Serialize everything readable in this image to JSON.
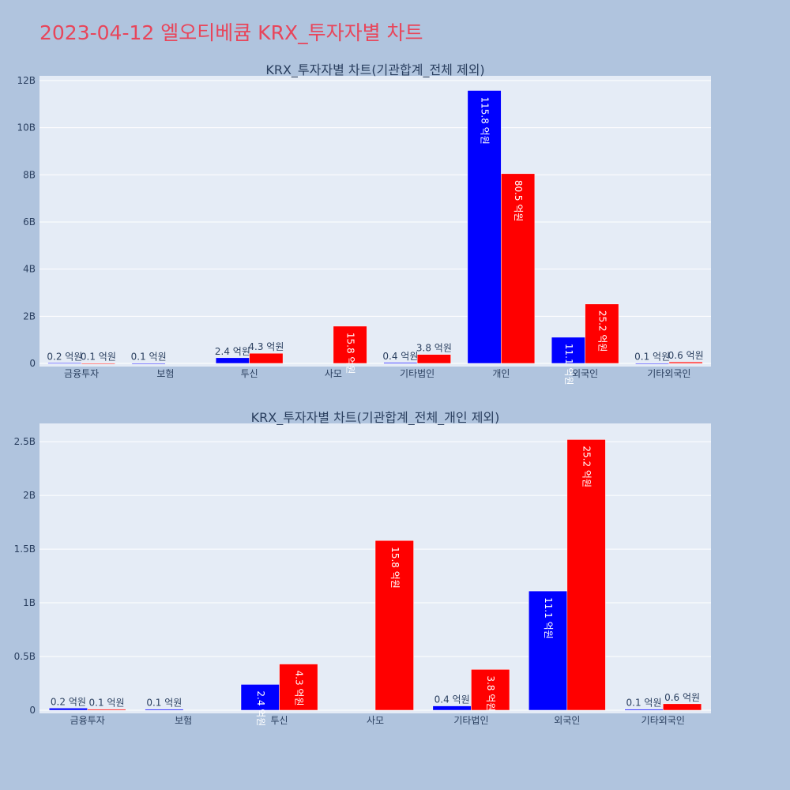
{
  "title": "2023-04-12 엘오티베큠 KRX_투자자별 차트",
  "colors": {
    "buy": "#0000ff",
    "sell": "#ff0000",
    "plot_bg": "#e5ecf6",
    "page_bg": "#b0c4de",
    "title": "#e8455a"
  },
  "chart_data": [
    {
      "type": "bar",
      "title": "KRX_투자자별 차트(기관합계_전체 제외)",
      "categories": [
        "금융투자",
        "보험",
        "투신",
        "사모",
        "기타법인",
        "개인",
        "외국인",
        "기타외국인"
      ],
      "ylim": [
        0,
        12200000000
      ],
      "yticks": [
        0,
        2000000000,
        4000000000,
        6000000000,
        8000000000,
        10000000000,
        12000000000
      ],
      "ytick_labels": [
        "0",
        "2B",
        "4B",
        "6B",
        "8B",
        "10B",
        "12B"
      ],
      "grid": true,
      "series": [
        {
          "color": "#0000ff",
          "values": [
            20000000,
            10000000,
            240000000,
            null,
            40000000,
            11580000000,
            1110000000,
            10000000
          ],
          "labels": [
            "0.2 억원",
            "0.1 억원",
            "2.4 억원",
            "",
            "0.4 억원",
            "115.8 억원",
            "11.1 억원",
            "0.1 억원"
          ]
        },
        {
          "color": "#ff0000",
          "values": [
            10000000,
            null,
            430000000,
            1580000000,
            380000000,
            8050000000,
            2520000000,
            60000000
          ],
          "labels": [
            "0.1 억원",
            "",
            "4.3 억원",
            "15.8 억원",
            "3.8 억원",
            "80.5 억원",
            "25.2 억원",
            "0.6 억원"
          ]
        }
      ]
    },
    {
      "type": "bar",
      "title": "KRX_투자자별 차트(기관합계_전체_개인 제외)",
      "categories": [
        "금융투자",
        "보험",
        "투신",
        "사모",
        "기타법인",
        "외국인",
        "기타외국인"
      ],
      "ylim": [
        0,
        2670000000
      ],
      "yticks": [
        0,
        500000000,
        1000000000,
        1500000000,
        2000000000,
        2500000000
      ],
      "ytick_labels": [
        "0",
        "0.5B",
        "1B",
        "1.5B",
        "2B",
        "2.5B"
      ],
      "grid": true,
      "series": [
        {
          "color": "#0000ff",
          "values": [
            20000000,
            10000000,
            240000000,
            null,
            40000000,
            1110000000,
            10000000
          ],
          "labels": [
            "0.2 억원",
            "0.1 억원",
            "2.4 억원",
            "",
            "0.4 억원",
            "11.1 억원",
            "0.1 억원"
          ]
        },
        {
          "color": "#ff0000",
          "values": [
            10000000,
            null,
            430000000,
            1580000000,
            380000000,
            2520000000,
            60000000
          ],
          "labels": [
            "0.1 억원",
            "",
            "4.3 억원",
            "15.8 억원",
            "3.8 억원",
            "25.2 억원",
            "0.6 억원"
          ]
        }
      ]
    }
  ]
}
